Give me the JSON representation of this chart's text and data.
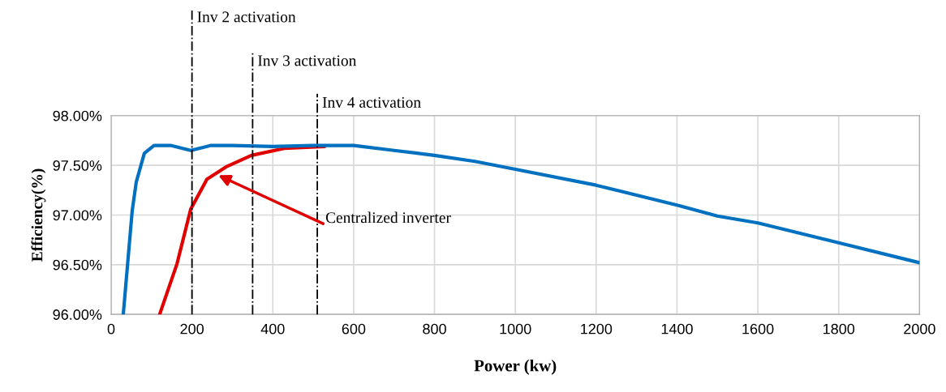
{
  "chart_data": {
    "type": "line",
    "xlabel": "Power (kw)",
    "ylabel": "Efficiency(%)",
    "series": [
      {
        "color": "#e00000",
        "x": [
          120,
          163,
          197,
          237,
          287,
          347,
          428,
          528
        ],
        "values": [
          96.0,
          96.51,
          97.06,
          97.36,
          97.49,
          97.6,
          97.67,
          97.69
        ]
      },
      {
        "color": "#0070c0",
        "x": [
          30,
          52,
          62,
          82,
          106,
          147,
          197,
          247,
          300,
          400,
          500,
          600,
          700,
          800,
          900,
          1000,
          1200,
          1400,
          1500,
          1600,
          1800,
          2000
        ],
        "values": [
          96.0,
          97.04,
          97.33,
          97.62,
          97.7,
          97.7,
          97.65,
          97.7,
          97.7,
          97.69,
          97.7,
          97.7,
          97.65,
          97.6,
          97.54,
          97.46,
          97.3,
          97.1,
          96.99,
          96.92,
          96.72,
          96.52
        ]
      }
    ],
    "xlim": [
      0,
      2000
    ],
    "xticks": [
      0,
      200,
      400,
      600,
      800,
      1000,
      1200,
      1400,
      1600,
      1800,
      2000
    ],
    "ylim": [
      96.0,
      98.0
    ],
    "yticks": [
      {
        "value": 96.0,
        "label": "96.00%"
      },
      {
        "value": 96.5,
        "label": "96.50%"
      },
      {
        "value": 97.0,
        "label": "97.00%"
      },
      {
        "value": 97.5,
        "label": "97.50%"
      },
      {
        "value": 98.0,
        "label": "98.00%"
      }
    ],
    "ref_lines": [
      {
        "axis": "x",
        "value": 200,
        "label": "Inv 2 activation",
        "color": "#000000",
        "line_style": "dashdot"
      },
      {
        "axis": "x",
        "value": 350,
        "label": "Inv 3 activation",
        "color": "#000000",
        "line_style": "dashdot"
      },
      {
        "axis": "x",
        "value": 510,
        "label": "Inv 4 activation",
        "color": "#000000",
        "line_style": "dashdot"
      }
    ],
    "annotations": [
      {
        "text": "Centralized inverter",
        "x": 265,
        "y": 97.4
      }
    ],
    "grid": true,
    "legend": false,
    "marker": "none",
    "line_style": "solid"
  }
}
